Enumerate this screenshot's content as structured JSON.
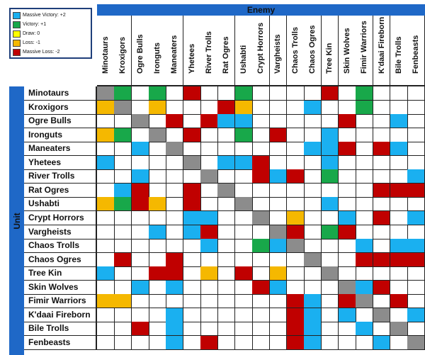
{
  "enemy_header": "Enemy",
  "unit_header": "Unit",
  "legend": [
    {
      "label": "Massive Victory: +2",
      "color": "#1ab0f0",
      "key": "MV"
    },
    {
      "label": "Victory: +1",
      "color": "#18a84a",
      "key": "V"
    },
    {
      "label": "Draw: 0",
      "color": "#ffff00",
      "key": "D"
    },
    {
      "label": "Loss: -1",
      "color": "#f5b800",
      "key": "L"
    },
    {
      "label": "Massive Loss: -2",
      "color": "#c00000",
      "key": "ML"
    }
  ],
  "self_color": "#8c8c8c",
  "columns": [
    "Minotaurs",
    "Kroxigors",
    "Ogre Bulls",
    "Ironguts",
    "Maneaters",
    "Yhetees",
    "River Trolls",
    "Rat Ogres",
    "Ushabti",
    "Crypt Horrors",
    "Vargheists",
    "Chaos Trolls",
    "Chaos Ogres",
    "Tree Kin",
    "Skin Wolves",
    "Fimir Warriors",
    "K'daai Fireborn",
    "Bile Trolls",
    "Fenbeasts"
  ],
  "rows": [
    {
      "label": "Minotaurs",
      "cells": [
        "S",
        "V",
        "",
        "V",
        "",
        "ML",
        "",
        "",
        "V",
        "",
        "",
        "",
        "",
        "ML",
        "",
        "V",
        "",
        "",
        ""
      ]
    },
    {
      "label": "Kroxigors",
      "cells": [
        "L",
        "S",
        "",
        "L",
        "",
        "",
        "",
        "ML",
        "L",
        "",
        "",
        "",
        "MV",
        "",
        "",
        "V",
        "",
        "",
        ""
      ]
    },
    {
      "label": "Ogre Bulls",
      "cells": [
        "",
        "",
        "S",
        "",
        "ML",
        "",
        "ML",
        "MV",
        "MV",
        "",
        "",
        "",
        "",
        "",
        "ML",
        "",
        "",
        "MV",
        ""
      ]
    },
    {
      "label": "Ironguts",
      "cells": [
        "L",
        "V",
        "",
        "S",
        "",
        "ML",
        "",
        "",
        "V",
        "",
        "ML",
        "",
        "",
        "MV",
        "",
        "",
        "",
        "",
        ""
      ]
    },
    {
      "label": "Maneaters",
      "cells": [
        "",
        "",
        "MV",
        "",
        "S",
        "",
        "",
        "",
        "",
        "",
        "",
        "",
        "MV",
        "MV",
        "ML",
        "",
        "ML",
        "MV",
        ""
      ]
    },
    {
      "label": "Yhetees",
      "cells": [
        "MV",
        "",
        "",
        "",
        "",
        "S",
        "",
        "MV",
        "MV",
        "ML",
        "",
        "",
        "",
        "MV",
        "",
        "",
        "",
        "",
        ""
      ]
    },
    {
      "label": "River Trolls",
      "cells": [
        "",
        "",
        "MV",
        "",
        "",
        "",
        "S",
        "",
        "",
        "ML",
        "MV",
        "ML",
        "",
        "V",
        "",
        "",
        "",
        "",
        "MV"
      ]
    },
    {
      "label": "Rat Ogres",
      "cells": [
        "",
        "MV",
        "ML",
        "",
        "",
        "ML",
        "",
        "S",
        "",
        "",
        "",
        "",
        "",
        "",
        "",
        "",
        "ML",
        "ML",
        "ML"
      ]
    },
    {
      "label": "Ushabti",
      "cells": [
        "L",
        "V",
        "ML",
        "L",
        "",
        "ML",
        "",
        "",
        "S",
        "",
        "",
        "",
        "",
        "MV",
        "",
        "",
        "",
        "",
        ""
      ]
    },
    {
      "label": "Crypt Horrors",
      "cells": [
        "",
        "",
        "",
        "",
        "",
        "MV",
        "MV",
        "",
        "",
        "S",
        "",
        "L",
        "",
        "",
        "MV",
        "",
        "ML",
        "",
        "MV"
      ]
    },
    {
      "label": "Vargheists",
      "cells": [
        "",
        "",
        "",
        "MV",
        "",
        "MV",
        "ML",
        "",
        "",
        "",
        "S",
        "ML",
        "",
        "V",
        "ML",
        "",
        "",
        "",
        ""
      ]
    },
    {
      "label": "Chaos Trolls",
      "cells": [
        "",
        "",
        "",
        "",
        "",
        "",
        "MV",
        "",
        "",
        "V",
        "MV",
        "S",
        "",
        "",
        "",
        "MV",
        "",
        "MV",
        "MV"
      ]
    },
    {
      "label": "Chaos Ogres",
      "cells": [
        "",
        "ML",
        "",
        "",
        "ML",
        "",
        "",
        "",
        "",
        "",
        "",
        "",
        "S",
        "",
        "",
        "ML",
        "ML",
        "ML",
        "ML"
      ]
    },
    {
      "label": "Tree Kin",
      "cells": [
        "MV",
        "",
        "",
        "ML",
        "ML",
        "",
        "L",
        "",
        "ML",
        "",
        "L",
        "",
        "",
        "S",
        "",
        "",
        "",
        "",
        ""
      ]
    },
    {
      "label": "Skin Wolves",
      "cells": [
        "",
        "",
        "MV",
        "",
        "MV",
        "",
        "",
        "",
        "",
        "ML",
        "MV",
        "",
        "",
        "",
        "S",
        "MV",
        "ML",
        "",
        ""
      ]
    },
    {
      "label": "Fimir Warriors",
      "cells": [
        "L",
        "L",
        "",
        "",
        "",
        "",
        "",
        "",
        "",
        "",
        "",
        "ML",
        "MV",
        "",
        "ML",
        "S",
        "",
        "ML",
        ""
      ]
    },
    {
      "label": "K'daai Fireborn",
      "cells": [
        "",
        "",
        "",
        "",
        "MV",
        "",
        "",
        "",
        "",
        "",
        "",
        "ML",
        "MV",
        "",
        "MV",
        "",
        "S",
        "",
        "MV"
      ]
    },
    {
      "label": "Bile Trolls",
      "cells": [
        "",
        "",
        "ML",
        "",
        "MV",
        "",
        "",
        "",
        "",
        "",
        "",
        "ML",
        "MV",
        "",
        "",
        "MV",
        "",
        "S",
        ""
      ]
    },
    {
      "label": "Fenbeasts",
      "cells": [
        "",
        "",
        "",
        "",
        "MV",
        "",
        "ML",
        "",
        "",
        "",
        "",
        "ML",
        "MV",
        "",
        "",
        "",
        "MV",
        "",
        "S"
      ]
    }
  ]
}
